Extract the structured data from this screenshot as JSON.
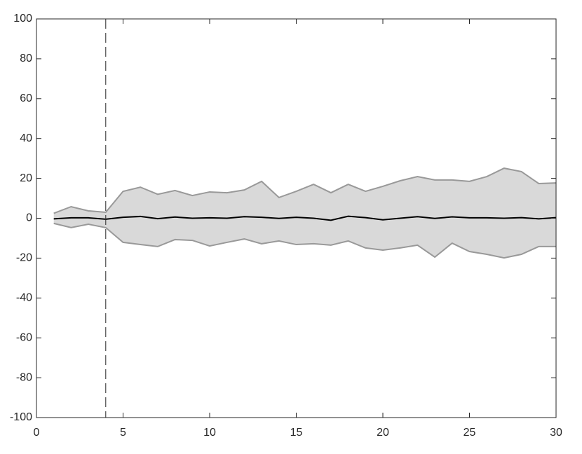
{
  "chart_data": {
    "type": "band-line",
    "x": [
      1,
      2,
      3,
      4,
      5,
      6,
      7,
      8,
      9,
      10,
      11,
      12,
      13,
      14,
      15,
      16,
      17,
      18,
      19,
      20,
      21,
      22,
      23,
      24,
      25,
      26,
      27,
      28,
      29,
      30
    ],
    "line": {
      "color": "#000000",
      "values": [
        -0.3,
        0.2,
        0.2,
        -0.5,
        0.5,
        0.9,
        -0.2,
        0.6,
        0,
        0.2,
        0,
        0.8,
        0.5,
        -0.1,
        0.5,
        0,
        -1,
        1,
        0.3,
        -0.8,
        0,
        0.8,
        -0.1,
        0.7,
        0.2,
        0.2,
        0,
        0.3,
        -0.3,
        0.3
      ]
    },
    "band": {
      "fill": "#d9d9d9",
      "edge": "#999999",
      "upper": [
        2.5,
        5.8,
        3.7,
        3,
        13.5,
        15.6,
        12,
        13.9,
        11.4,
        13.2,
        12.8,
        14.2,
        18.5,
        10.4,
        13.5,
        17,
        12.8,
        17,
        13.5,
        16,
        18.8,
        20.9,
        19.2,
        19.2,
        18.5,
        20.9,
        25.1,
        23.4,
        17.4,
        17.7
      ],
      "lower": [
        -2.6,
        -4.7,
        -3,
        -4.7,
        -12.1,
        -13.2,
        -14.2,
        -10.7,
        -11.1,
        -13.9,
        -12.1,
        -10.4,
        -12.8,
        -11.4,
        -13.2,
        -12.8,
        -13.5,
        -11.4,
        -14.9,
        -16,
        -14.9,
        -13.5,
        -19.5,
        -12.5,
        -16.7,
        -18.1,
        -19.9,
        -18.1,
        -14.2,
        -14.2
      ]
    },
    "vline": 4,
    "xlim": [
      0,
      30
    ],
    "xticks": [
      0,
      5,
      10,
      15,
      20,
      25,
      30
    ],
    "ylim": [
      -100,
      100
    ],
    "yticks": [
      -100,
      -80,
      -60,
      -40,
      -20,
      0,
      20,
      40,
      60,
      80,
      100
    ]
  }
}
